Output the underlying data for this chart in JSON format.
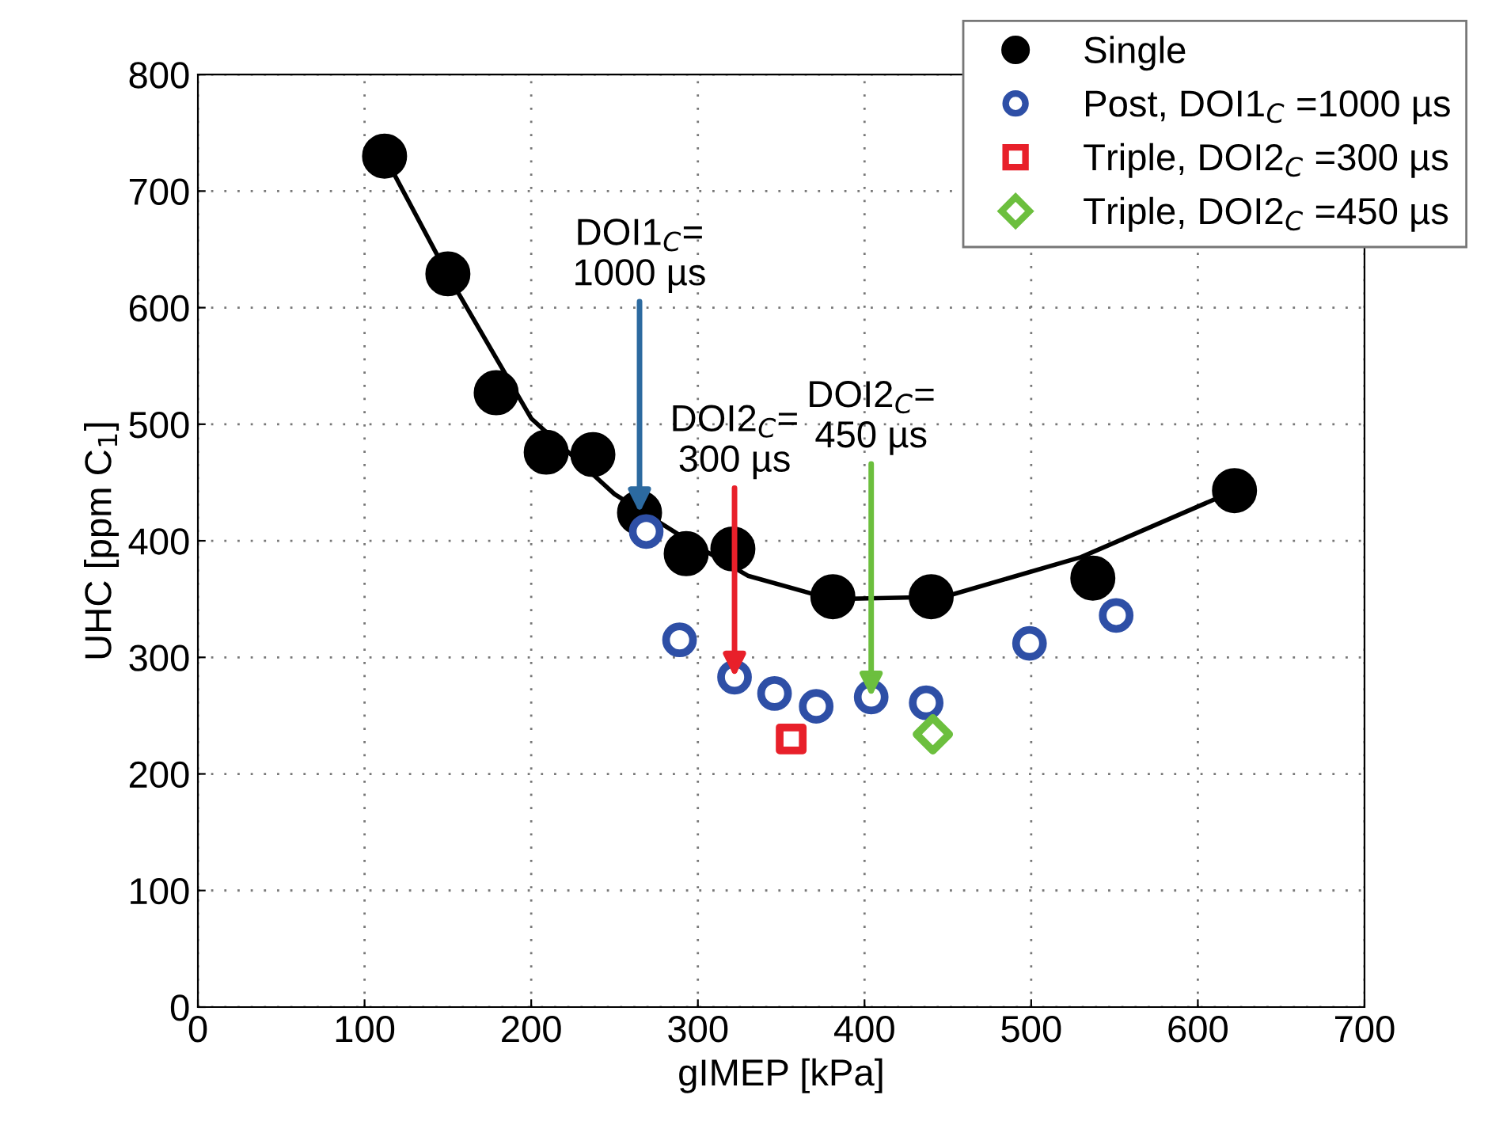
{
  "chart_data": {
    "type": "scatter",
    "xlabel": "gIMEP [kPa]",
    "ylabel": "UHC [ppm C$_{1}$]",
    "xlim": [
      0,
      700
    ],
    "xticks": [
      0,
      100,
      200,
      300,
      400,
      500,
      600,
      700
    ],
    "ylim": [
      0,
      800
    ],
    "yticks": [
      0,
      100,
      200,
      300,
      400,
      500,
      600,
      700,
      800
    ],
    "grid": true,
    "legend": "top right",
    "series": [
      {
        "type": "line",
        "color": "#000000",
        "marker": "none",
        "line_style": "solid",
        "x": [
          112,
          150,
          200,
          250,
          300,
          330,
          380,
          448,
          530,
          622
        ],
        "values": [
          730,
          628,
          505,
          440,
          395,
          370,
          350,
          352,
          386,
          443
        ]
      },
      {
        "name": "Single",
        "color": "#000000",
        "marker": "circle",
        "x": [
          112,
          150,
          179,
          209,
          237,
          265,
          293,
          321,
          381,
          440,
          537,
          622
        ],
        "values": [
          730,
          629,
          527,
          476,
          474,
          424,
          389,
          393,
          352,
          352,
          368,
          443
        ]
      },
      {
        "name": "Post, DOI1$_{C}$ =1000 µs",
        "color": "#2e4fa6",
        "marker": "circle",
        "x": [
          269,
          289,
          322,
          346,
          371,
          404,
          437,
          499,
          551
        ],
        "values": [
          408,
          315,
          283,
          269,
          258,
          266,
          261,
          312,
          336
        ]
      },
      {
        "name": "Triple, DOI2$_{C}$ =300 µs",
        "color": "#e8202a",
        "marker": "square",
        "x": [
          356
        ],
        "values": [
          230
        ]
      },
      {
        "name": "Triple, DOI2$_{C}$ =450 µs",
        "color": "#6cbf3e",
        "marker": "diamond",
        "x": [
          441
        ],
        "values": [
          234
        ]
      }
    ],
    "annotations": [
      {
        "text": "DOI1$_{C}$=\n1000 µs",
        "x": 265,
        "y": 424
      },
      {
        "text": "DOI2$_{C}$=\n300 µs",
        "x": 322,
        "y": 283
      },
      {
        "text": "DOI2$_{C}$=\n450 µs",
        "x": 404,
        "y": 266
      }
    ]
  }
}
